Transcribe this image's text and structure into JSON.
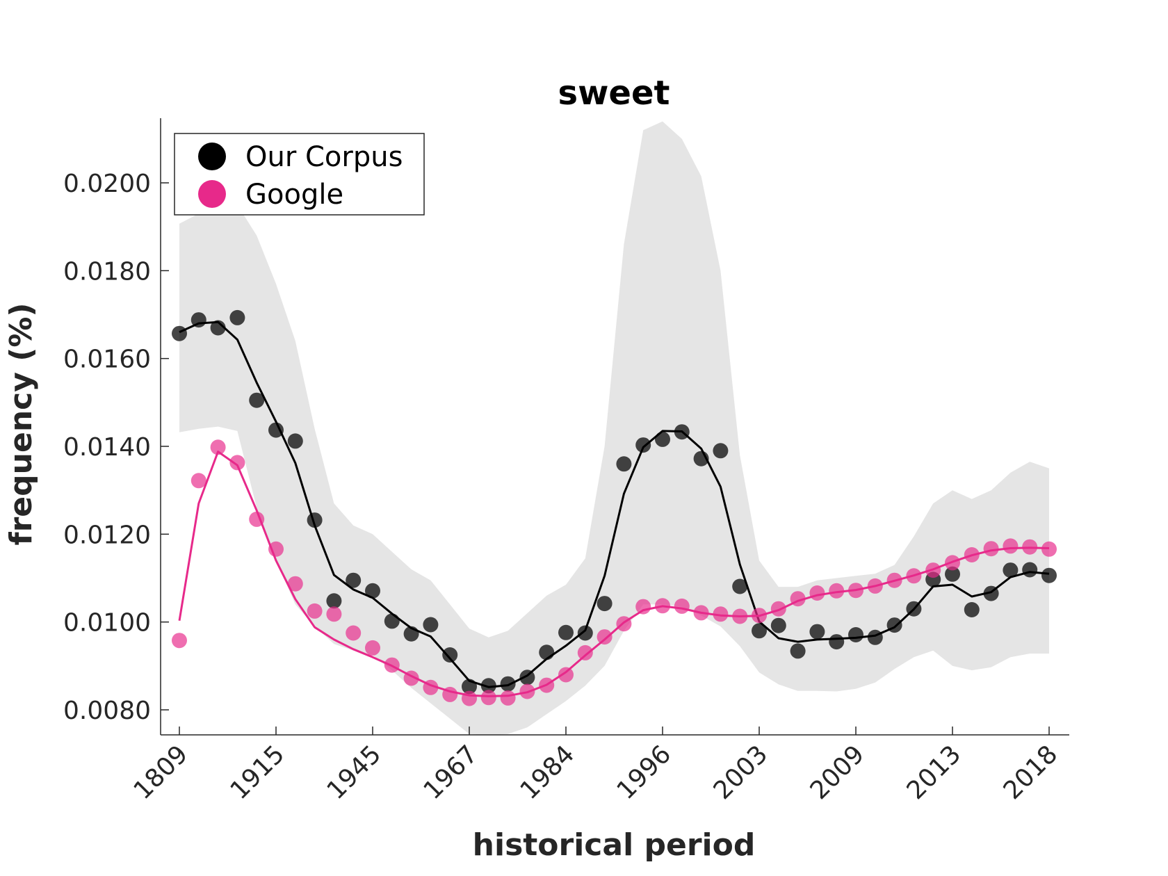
{
  "chart_data": {
    "type": "line",
    "title": "sweet",
    "xlabel": "historical period",
    "ylabel": "frequency (%)",
    "x_tick_labels": [
      "1809",
      "1915",
      "1945",
      "1967",
      "1984",
      "1996",
      "2003",
      "2009",
      "2013",
      "2018"
    ],
    "y_ticks": [
      0.008,
      0.01,
      0.012,
      0.014,
      0.016,
      0.018,
      0.02
    ],
    "y_tick_labels": [
      "0.0080",
      "0.0100",
      "0.0120",
      "0.0140",
      "0.0160",
      "0.0180",
      "0.0200"
    ],
    "ylim": [
      0.0074,
      0.0215
    ],
    "grid": false,
    "legend_position": "top-left",
    "series": [
      {
        "name": "Our Corpus",
        "color": "#000000",
        "points": [
          0.01657,
          0.01688,
          0.0167,
          0.01693,
          0.01505,
          0.01437,
          0.01412,
          0.01232,
          0.01048,
          0.01095,
          0.01071,
          0.01002,
          0.00973,
          0.00994,
          0.00925,
          0.00853,
          0.00855,
          0.00859,
          0.00874,
          0.00931,
          0.00976,
          0.00975,
          0.01042,
          0.0136,
          0.01403,
          0.01416,
          0.01433,
          0.01372,
          0.0139,
          0.01081,
          0.0098,
          0.00992,
          0.00934,
          0.00978,
          0.00955,
          0.00971,
          0.00965,
          0.00993,
          0.0103,
          0.01097,
          0.01109,
          0.01028,
          0.01065,
          0.01118,
          0.01119,
          0.01106
        ],
        "smooth": [
          0.0166,
          0.0168,
          0.01683,
          0.01643,
          0.01545,
          0.01456,
          0.01362,
          0.0122,
          0.01107,
          0.01074,
          0.01055,
          0.01019,
          0.00986,
          0.00967,
          0.00917,
          0.00866,
          0.00852,
          0.00856,
          0.00878,
          0.00916,
          0.00946,
          0.00981,
          0.01105,
          0.01292,
          0.01398,
          0.01435,
          0.01434,
          0.01395,
          0.01308,
          0.01131,
          0.01001,
          0.00963,
          0.00955,
          0.0096,
          0.00962,
          0.00964,
          0.00969,
          0.00988,
          0.01029,
          0.01081,
          0.01085,
          0.01058,
          0.01068,
          0.01102,
          0.01114,
          0.0111
        ],
        "band_upper": [
          0.01907,
          0.0193,
          0.0194,
          0.0195,
          0.0188,
          0.0177,
          0.0164,
          0.0144,
          0.0127,
          0.0122,
          0.012,
          0.0116,
          0.0112,
          0.01095,
          0.0104,
          0.00985,
          0.00965,
          0.0098,
          0.0102,
          0.0106,
          0.01085,
          0.01145,
          0.014,
          0.0186,
          0.0212,
          0.0214,
          0.021,
          0.02015,
          0.018,
          0.0138,
          0.0114,
          0.0108,
          0.0108,
          0.01095,
          0.011,
          0.01105,
          0.0111,
          0.0113,
          0.01195,
          0.0127,
          0.013,
          0.0128,
          0.013,
          0.0134,
          0.01365,
          0.0135
        ],
        "band_lower": [
          0.01432,
          0.0144,
          0.01445,
          0.01435,
          0.0126,
          0.0114,
          0.0104,
          0.0099,
          0.0095,
          0.00935,
          0.00925,
          0.0089,
          0.0085,
          0.00815,
          0.0078,
          0.00745,
          0.00742,
          0.00745,
          0.0076,
          0.0079,
          0.0082,
          0.00855,
          0.009,
          0.0098,
          0.0104,
          0.0104,
          0.01035,
          0.01015,
          0.0099,
          0.00945,
          0.00885,
          0.00858,
          0.00843,
          0.00843,
          0.00842,
          0.00848,
          0.00862,
          0.00893,
          0.0092,
          0.00935,
          0.009,
          0.0089,
          0.00897,
          0.0092,
          0.00928,
          0.00928
        ]
      },
      {
        "name": "Google",
        "color": "#e7298a",
        "points": [
          0.00958,
          0.01322,
          0.01398,
          0.01363,
          0.01234,
          0.01166,
          0.01087,
          0.01025,
          0.01018,
          0.00975,
          0.00941,
          0.00902,
          0.00872,
          0.00851,
          0.00835,
          0.00826,
          0.00828,
          0.00827,
          0.00842,
          0.00856,
          0.0088,
          0.0093,
          0.00966,
          0.00996,
          0.01035,
          0.01037,
          0.01036,
          0.01021,
          0.01018,
          0.01013,
          0.01015,
          0.0103,
          0.01053,
          0.01066,
          0.01071,
          0.01072,
          0.01082,
          0.01095,
          0.01105,
          0.01118,
          0.01135,
          0.01153,
          0.01167,
          0.01173,
          0.01171,
          0.01166
        ],
        "smooth": [
          0.01003,
          0.0127,
          0.01388,
          0.01357,
          0.01254,
          0.0114,
          0.01052,
          0.00988,
          0.0096,
          0.00938,
          0.0092,
          0.009,
          0.00877,
          0.00856,
          0.00842,
          0.00833,
          0.00831,
          0.00832,
          0.0084,
          0.00857,
          0.00886,
          0.00924,
          0.0096,
          0.00999,
          0.01027,
          0.01036,
          0.01031,
          0.01021,
          0.01015,
          0.01013,
          0.01014,
          0.01027,
          0.01048,
          0.01061,
          0.01068,
          0.01073,
          0.01082,
          0.01094,
          0.01106,
          0.0112,
          0.01137,
          0.01152,
          0.01163,
          0.01168,
          0.01169,
          0.01168
        ]
      }
    ]
  }
}
